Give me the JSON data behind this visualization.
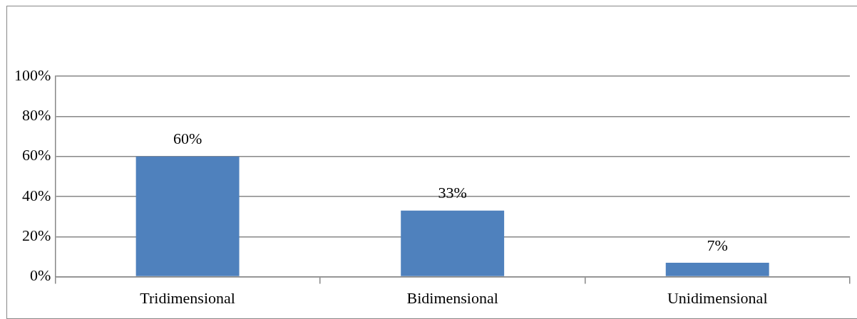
{
  "chart_data": {
    "type": "bar",
    "categories": [
      "Tridimensional",
      "Bidimensional",
      "Unidimensional"
    ],
    "values": [
      60,
      33,
      7
    ],
    "value_labels": [
      "60%",
      "33%",
      "7%"
    ],
    "color": "#4f81bd",
    "ylim": [
      0,
      100
    ],
    "yticks": [
      {
        "value": 0,
        "label": "0%"
      },
      {
        "value": 20,
        "label": "20%"
      },
      {
        "value": 40,
        "label": "40%"
      },
      {
        "value": 60,
        "label": "60%"
      },
      {
        "value": 80,
        "label": "80%"
      },
      {
        "value": 100,
        "label": "100%"
      }
    ],
    "grid": "y",
    "legend": false
  }
}
